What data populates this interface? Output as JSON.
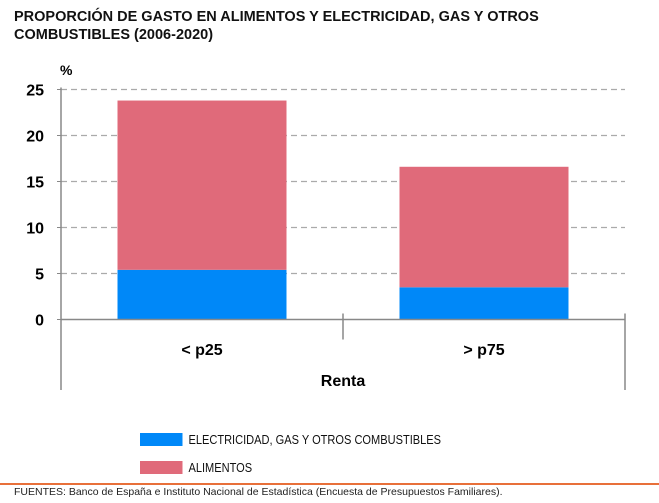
{
  "chart_data": {
    "type": "bar",
    "stacked": true,
    "title": "PROPORCIÓN DE GASTO EN ALIMENTOS Y ELECTRICIDAD, GAS Y OTROS COMBUSTIBLES (2006-2020)",
    "ylabel": "%",
    "xlabel": "Renta",
    "categories": [
      "< p25",
      "> p75"
    ],
    "ylim": [
      0,
      25
    ],
    "yticks": [
      0,
      5,
      10,
      15,
      20,
      25
    ],
    "grid": true,
    "legend_position": "bottom",
    "series": [
      {
        "name": "ELECTRICIDAD, GAS Y OTROS COMBUSTIBLES",
        "color": "#0088f8",
        "values": [
          5.4,
          3.5
        ]
      },
      {
        "name": "ALIMENTOS",
        "color": "#e06a7a",
        "values": [
          18.4,
          13.1
        ]
      }
    ]
  },
  "footer": "FUENTES: Banco de España e Instituto Nacional de Estadística (Encuesta de Presupuestos Familiares)."
}
